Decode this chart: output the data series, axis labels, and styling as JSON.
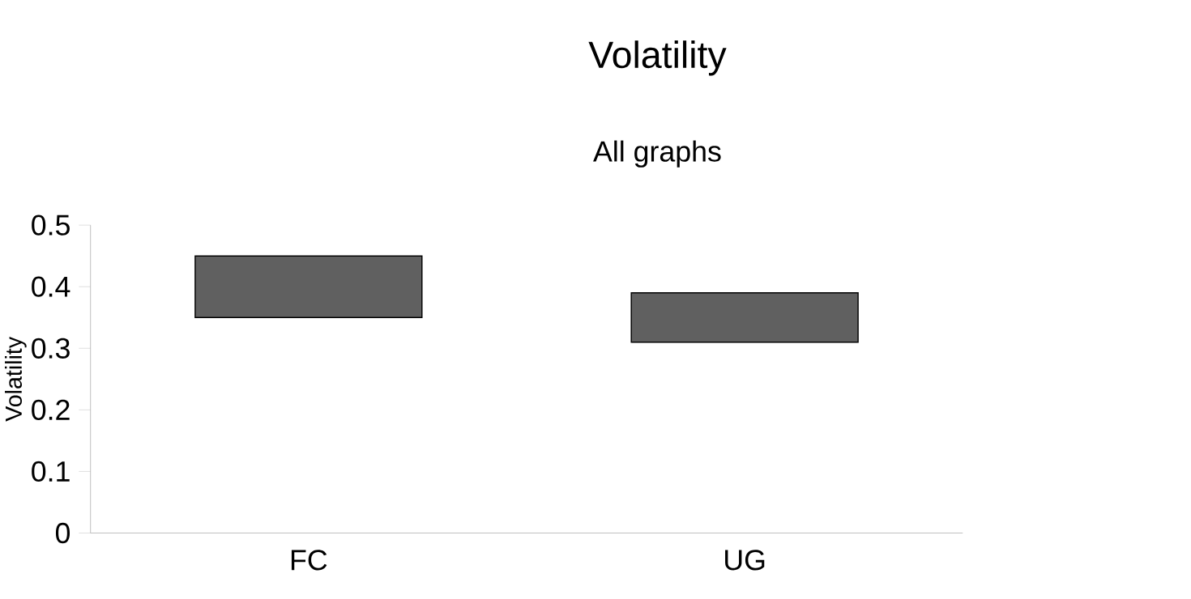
{
  "chart_data": {
    "type": "bar",
    "title": "Volatility",
    "subtitle": "All graphs",
    "ylabel": "Volatility",
    "categories": [
      "FC",
      "UG"
    ],
    "base": [
      0.35,
      0.31
    ],
    "values": [
      0.1,
      0.08
    ],
    "color": "#606060",
    "ylim": [
      0,
      0.5
    ],
    "yticks": [
      0,
      0.1,
      0.2,
      0.3,
      0.4,
      0.5
    ]
  }
}
